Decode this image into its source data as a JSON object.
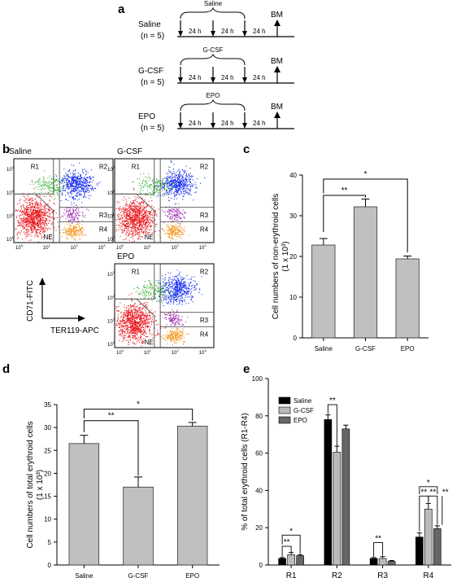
{
  "panel_a": {
    "letter": "a",
    "groups": [
      {
        "name": "Saline",
        "n": "(n = 5)",
        "bracket": "Saline"
      },
      {
        "name": "G-CSF",
        "n": "(n = 5)",
        "bracket": "G-CSF"
      },
      {
        "name": "EPO",
        "n": "(n = 5)",
        "bracket": "EPO"
      }
    ],
    "interval": "24 h",
    "endpoint": "BM"
  },
  "panel_b": {
    "letter": "b",
    "plots": [
      {
        "title": "Saline"
      },
      {
        "title": "G-CSF"
      },
      {
        "title": "EPO"
      }
    ],
    "regions": [
      "R1",
      "R2",
      "R3",
      "R4",
      "NE"
    ],
    "y_axis_label": "CD71-FITC",
    "x_axis_label": "TER119-APC",
    "tick_base": "10",
    "tick_exps": [
      "0",
      "1",
      "2",
      "3"
    ]
  },
  "panel_c": {
    "letter": "c",
    "chart_data": {
      "type": "bar",
      "categories": [
        "Saline",
        "G-CSF",
        "EPO"
      ],
      "values": [
        22.8,
        32.2,
        19.4
      ],
      "errors": [
        1.6,
        1.9,
        0.7
      ],
      "ylabel_line1": "Cell numbers of non-erythroid cells",
      "ylabel_line2": "(1 x 10³)",
      "ylim": [
        0,
        40
      ],
      "yticks": [
        "0",
        "10",
        "20",
        "30",
        "40"
      ],
      "significance": [
        "**",
        "*"
      ],
      "bar_color": "#c0c0c0"
    }
  },
  "panel_d": {
    "letter": "d",
    "chart_data": {
      "type": "bar",
      "categories": [
        "Saline",
        "G-CSF",
        "EPO"
      ],
      "values": [
        26.5,
        17.0,
        30.3
      ],
      "errors": [
        1.8,
        2.2,
        0.8
      ],
      "ylabel_line1": "Cell numbers of total erythroid cells",
      "ylabel_line2": "(1 x 10³)",
      "ylim": [
        0,
        35
      ],
      "yticks": [
        "0",
        "5",
        "10",
        "15",
        "20",
        "25",
        "30",
        "35"
      ],
      "significance": [
        "**",
        "*"
      ],
      "bar_color": "#c0c0c0"
    }
  },
  "panel_e": {
    "letter": "e",
    "chart_data": {
      "type": "bar",
      "categories": [
        "R1",
        "R2",
        "R3",
        "R4"
      ],
      "series": [
        {
          "name": "Saline",
          "color": "#000000",
          "values": [
            3.5,
            78,
            3.5,
            15
          ],
          "errors": [
            0.5,
            2.5,
            0.5,
            2.2
          ]
        },
        {
          "name": "G-CSF",
          "color": "#bbbbbb",
          "values": [
            5.5,
            60.5,
            3.5,
            30
          ],
          "errors": [
            1.2,
            3.2,
            1.0,
            3.0
          ]
        },
        {
          "name": "EPO",
          "color": "#666666",
          "values": [
            5.0,
            73,
            2.0,
            19.5
          ],
          "errors": [
            0.5,
            2.0,
            0.4,
            1.5
          ]
        }
      ],
      "ylabel": "% of total erythroid cells  (R1-R4)",
      "ylim": [
        0,
        100
      ],
      "yticks": [
        "0",
        "20",
        "40",
        "60",
        "80",
        "100"
      ],
      "significance": {
        "R1": [
          "**",
          "*"
        ],
        "R2": [
          "**"
        ],
        "R3": [
          "**"
        ],
        "R4": [
          "*",
          "**",
          "**",
          "**"
        ]
      }
    }
  }
}
